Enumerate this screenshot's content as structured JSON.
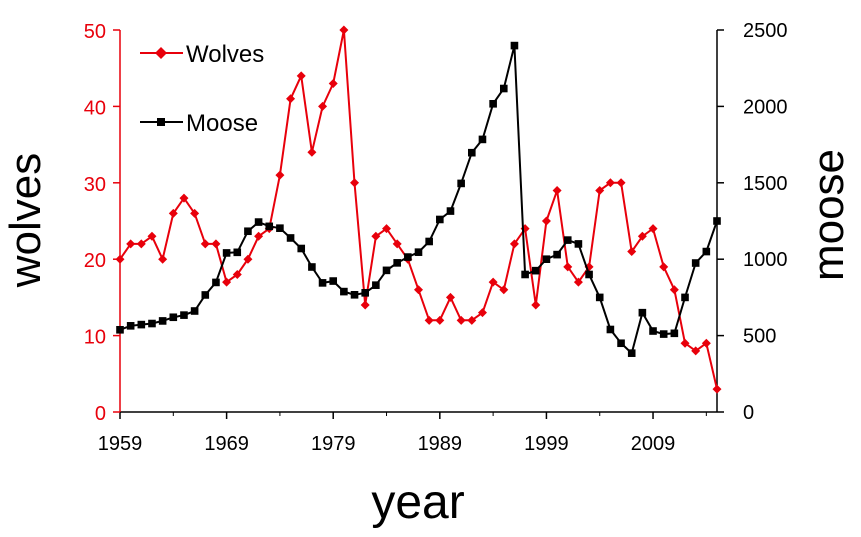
{
  "chart_data": {
    "type": "line",
    "xlabel": "year",
    "ylabel_left": "wolves",
    "ylabel_right": "moose",
    "xlim": [
      1959,
      2015
    ],
    "ylim_left": [
      0,
      50
    ],
    "ylim_right": [
      0,
      2500
    ],
    "x_ticks": [
      "1959",
      "1969",
      "1979",
      "1989",
      "1999",
      "2009"
    ],
    "y_left_ticks": [
      "0",
      "10",
      "20",
      "30",
      "40",
      "50"
    ],
    "y_right_ticks": [
      "0",
      "500",
      "1000",
      "1500",
      "2000",
      "2500"
    ],
    "grid": false,
    "legend_position": "top-left",
    "series": [
      {
        "name": "Wolves",
        "axis": "left",
        "color": "#e8000b",
        "marker": "diamond",
        "x": [
          1959,
          1960,
          1961,
          1962,
          1963,
          1964,
          1965,
          1966,
          1967,
          1968,
          1969,
          1970,
          1971,
          1972,
          1973,
          1974,
          1975,
          1976,
          1977,
          1978,
          1979,
          1980,
          1981,
          1982,
          1983,
          1984,
          1985,
          1986,
          1987,
          1988,
          1989,
          1990,
          1991,
          1992,
          1993,
          1994,
          1995,
          1996,
          1997,
          1998,
          1999,
          2000,
          2001,
          2002,
          2003,
          2004,
          2005,
          2006,
          2007,
          2008,
          2009,
          2010,
          2011,
          2012,
          2013,
          2014,
          2015
        ],
        "values": [
          20,
          22,
          22,
          23,
          20,
          26,
          28,
          26,
          22,
          22,
          17,
          18,
          20,
          23,
          24,
          31,
          41,
          44,
          34,
          40,
          43,
          50,
          30,
          14,
          23,
          24,
          22,
          20,
          16,
          12,
          12,
          15,
          12,
          12,
          13,
          17,
          16,
          22,
          24,
          14,
          25,
          29,
          19,
          17,
          19,
          29,
          30,
          30,
          21,
          23,
          24,
          19,
          16,
          9,
          8,
          9,
          3
        ]
      },
      {
        "name": "Moose",
        "axis": "right",
        "color": "#000000",
        "marker": "square",
        "x": [
          1959,
          1960,
          1961,
          1962,
          1963,
          1964,
          1965,
          1966,
          1967,
          1968,
          1969,
          1970,
          1971,
          1972,
          1973,
          1974,
          1975,
          1976,
          1977,
          1978,
          1979,
          1980,
          1981,
          1982,
          1983,
          1984,
          1985,
          1986,
          1987,
          1988,
          1989,
          1990,
          1991,
          1992,
          1993,
          1994,
          1995,
          1996,
          1997,
          1998,
          1999,
          2000,
          2001,
          2002,
          2003,
          2004,
          2005,
          2006,
          2007,
          2008,
          2009,
          2010,
          2011,
          2012,
          2013,
          2014,
          2015
        ],
        "values": [
          538,
          564,
          572,
          579,
          596,
          620,
          634,
          661,
          766,
          848,
          1041,
          1045,
          1183,
          1243,
          1215,
          1203,
          1139,
          1070,
          949,
          845,
          857,
          788,
          767,
          780,
          830,
          927,
          976,
          1014,
          1046,
          1116,
          1260,
          1315,
          1496,
          1697,
          1784,
          2017,
          2117,
          2398,
          900,
          925,
          1000,
          1030,
          1125,
          1100,
          900,
          750,
          540,
          450,
          385,
          650,
          530,
          510,
          515,
          750,
          975,
          1050,
          1250
        ]
      }
    ]
  }
}
